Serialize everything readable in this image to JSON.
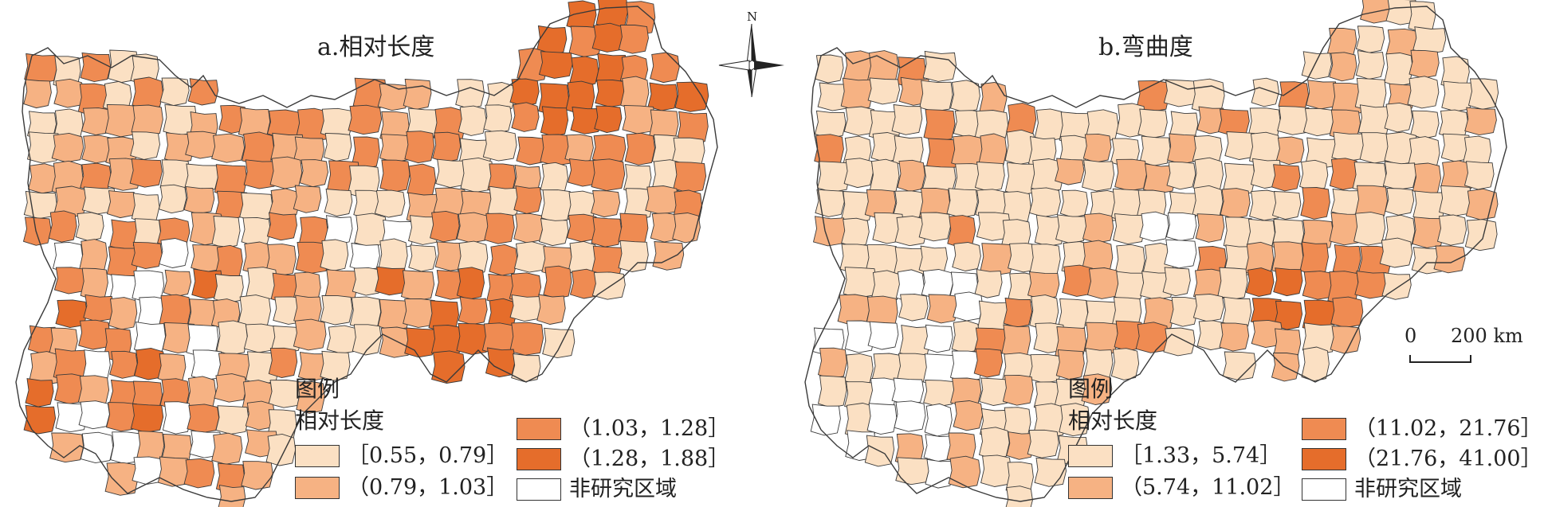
{
  "colors": {
    "class1": "#fbe0c3",
    "class2": "#f6b283",
    "class3": "#ef8b52",
    "class4": "#e56d2b",
    "non_study": "#ffffff",
    "boundary": "#3a3a3a"
  },
  "panels": [
    {
      "title": "a.相对长度",
      "legend": {
        "title": "图例",
        "subtitle": "相对长度",
        "items": [
          {
            "label": "［0.55，0.79］",
            "color": "#fbe0c3"
          },
          {
            "label": "（0.79，1.03］",
            "color": "#f6b283"
          },
          {
            "label": "（1.03，1.28］",
            "color": "#ef8b52"
          },
          {
            "label": "（1.28，1.88］",
            "color": "#e56d2b"
          },
          {
            "label": "非研究区域",
            "color": "#ffffff"
          }
        ]
      }
    },
    {
      "title": "b.弯曲度",
      "legend": {
        "title": "图例",
        "subtitle": "相对长度",
        "items": [
          {
            "label": "［1.33，5.74］",
            "color": "#fbe0c3"
          },
          {
            "label": "（5.74，11.02］",
            "color": "#f6b283"
          },
          {
            "label": "（11.02，21.76］",
            "color": "#ef8b52"
          },
          {
            "label": "（21.76，41.00］",
            "color": "#e56d2b"
          },
          {
            "label": "非研究区域",
            "color": "#ffffff"
          }
        ]
      }
    }
  ],
  "north_arrow": {
    "letter": "N"
  },
  "scale_bar": {
    "start_label": "0",
    "end_label": "200 km"
  }
}
